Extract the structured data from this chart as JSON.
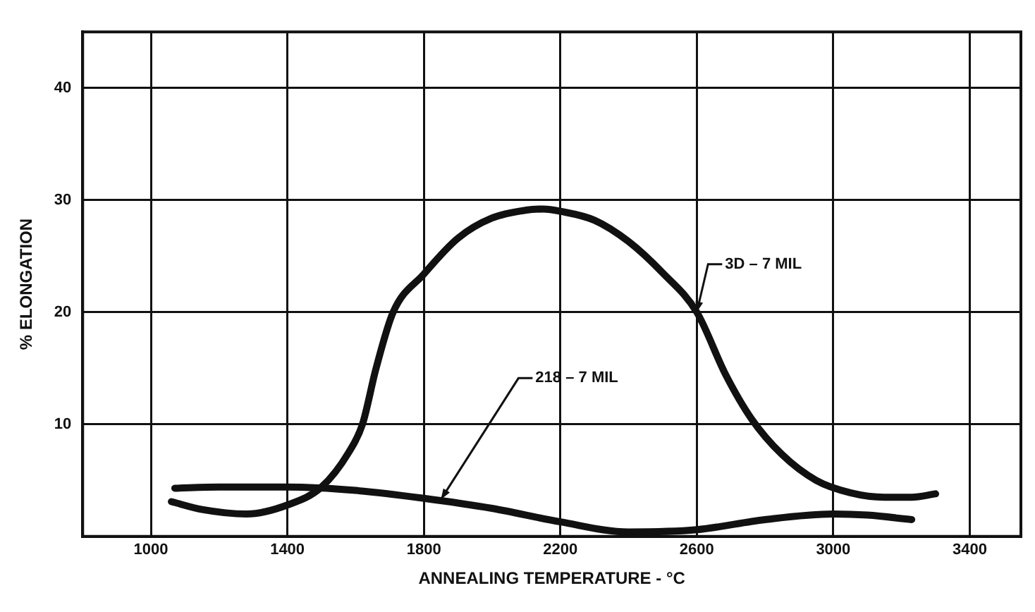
{
  "chart_data": {
    "type": "line",
    "xlabel": "ANNEALING TEMPERATURE - °C",
    "ylabel": "% ELONGATION",
    "xlim": [
      800,
      3550
    ],
    "xticks": [
      1000,
      1400,
      1800,
      2200,
      2600,
      3000,
      3400
    ],
    "ylim": [
      0,
      45
    ],
    "yticks": [
      10,
      20,
      30,
      40
    ],
    "grid": true,
    "legend": false,
    "marker": "none",
    "line_style": "solid",
    "series": [
      {
        "color": "#111111",
        "x": [
          1060,
          1150,
          1280,
          1400,
          1500,
          1580,
          1620,
          1660,
          1710,
          1800,
          1900,
          2000,
          2100,
          2150,
          2200,
          2300,
          2400,
          2500,
          2600,
          2685,
          2760,
          2850,
          2950,
          3050,
          3150,
          3230,
          3300
        ],
        "values": [
          3.1,
          2.4,
          2.0,
          2.8,
          4.4,
          7.5,
          10,
          15,
          20,
          23.4,
          26.6,
          28.4,
          29.1,
          29.2,
          29,
          28.2,
          26.3,
          23.5,
          20,
          14.4,
          10.5,
          7.3,
          5,
          3.9,
          3.5,
          3.5,
          3.8
        ]
      },
      {
        "color": "#111111",
        "x": [
          1070,
          1200,
          1400,
          1600,
          1800,
          2000,
          2200,
          2400,
          2600,
          2800,
          3000,
          3100,
          3230
        ],
        "values": [
          4.3,
          4.4,
          4.4,
          4.1,
          3.4,
          2.5,
          1.3,
          0.4,
          0.6,
          1.5,
          2.0,
          1.9,
          1.5
        ]
      }
    ],
    "annotations": [
      {
        "text": "3D – 7 MIL",
        "x": 2600,
        "y": 20
      },
      {
        "text": "218 – 7 MIL",
        "x": 1850,
        "y": 3.3
      }
    ]
  }
}
